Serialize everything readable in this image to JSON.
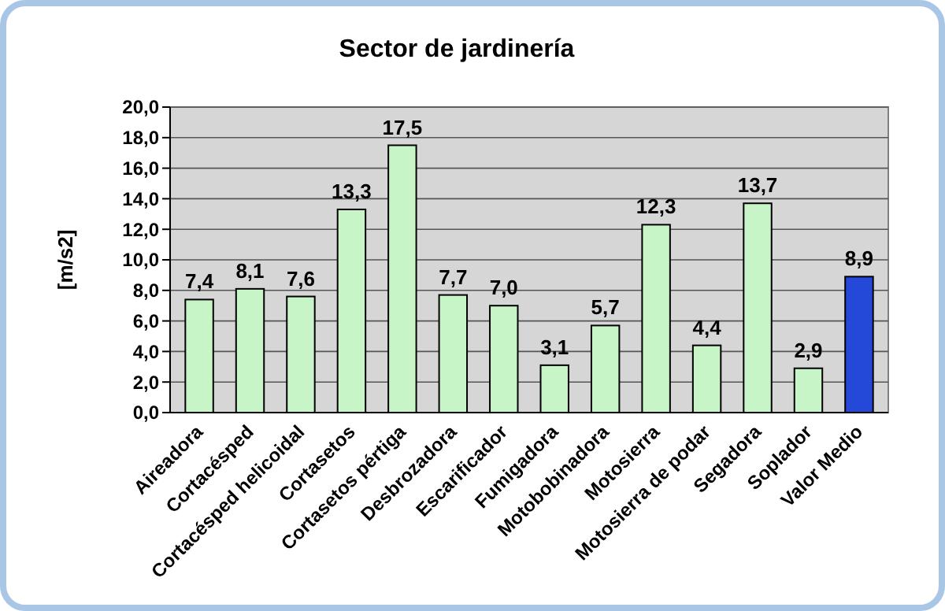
{
  "chart_data": {
    "type": "bar",
    "title": "Sector de jardinería",
    "ylabel": "[m/s2]",
    "categories": [
      "Aireadora",
      "Cortacésped",
      "Cortacésped helicoidal",
      "Cortasetos",
      "Cortasetos pértiga",
      "Desbrozadora",
      "Escarificador",
      "Fumigadora",
      "Motobobinadora",
      "Motosierra",
      "Motosierra de podar",
      "Segadora",
      "Soplador",
      "Valor Medio"
    ],
    "values": [
      7.4,
      8.1,
      7.6,
      13.3,
      17.5,
      7.7,
      7.0,
      3.1,
      5.7,
      12.3,
      4.4,
      13.7,
      2.9,
      8.9
    ],
    "value_labels": [
      "7,4",
      "8,1",
      "7,6",
      "13,3",
      "17,5",
      "7,7",
      "7,0",
      "3,1",
      "5,7",
      "12,3",
      "4,4",
      "13,7",
      "2,9",
      "8,9"
    ],
    "colors": [
      "#c8f5c8",
      "#c8f5c8",
      "#c8f5c8",
      "#c8f5c8",
      "#c8f5c8",
      "#c8f5c8",
      "#c8f5c8",
      "#c8f5c8",
      "#c8f5c8",
      "#c8f5c8",
      "#c8f5c8",
      "#c8f5c8",
      "#c8f5c8",
      "#2448d8"
    ],
    "ylim": [
      0,
      20
    ],
    "yticks": [
      {
        "value": 0,
        "label": "0,0"
      },
      {
        "value": 2,
        "label": "2,0"
      },
      {
        "value": 4,
        "label": "4,0"
      },
      {
        "value": 6,
        "label": "6,0"
      },
      {
        "value": 8,
        "label": "8,0"
      },
      {
        "value": 10,
        "label": "10,0"
      },
      {
        "value": 12,
        "label": "12,0"
      },
      {
        "value": 14,
        "label": "14,0"
      },
      {
        "value": 16,
        "label": "16,0"
      },
      {
        "value": 18,
        "label": "18,0"
      },
      {
        "value": 20,
        "label": "20,0"
      }
    ],
    "grid": true
  }
}
